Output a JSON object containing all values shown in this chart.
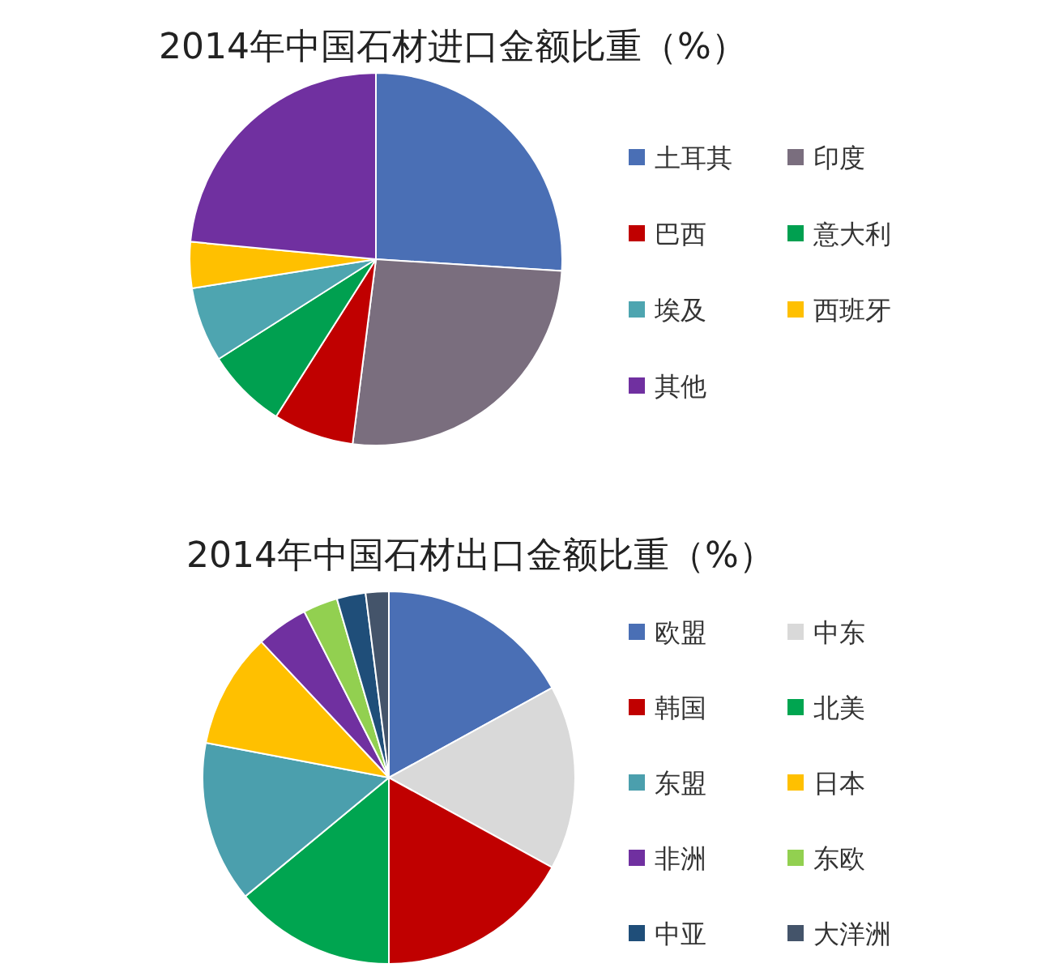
{
  "chart_data": [
    {
      "type": "pie",
      "title": "2014年中国石材进口金额比重（%）",
      "legend": "right",
      "categories": [
        "土耳其",
        "印度",
        "巴西",
        "意大利",
        "埃及",
        "西班牙",
        "其他"
      ],
      "values": [
        26,
        26,
        7,
        7,
        6.5,
        4,
        23.5
      ],
      "colors": [
        "#4a6fb5",
        "#7a6e7e",
        "#c00000",
        "#00a050",
        "#4ea5b0",
        "#ffc000",
        "#7030a0"
      ]
    },
    {
      "type": "pie",
      "title": "2014年中国石材出口金额比重（%）",
      "legend": "right",
      "categories": [
        "欧盟",
        "中东",
        "韩国",
        "北美",
        "东盟",
        "日本",
        "非洲",
        "东欧",
        "中亚",
        "大洋洲"
      ],
      "values": [
        17,
        16,
        17,
        14,
        14,
        10,
        4.5,
        3,
        2.5,
        2
      ],
      "colors": [
        "#4a6fb5",
        "#d9d9d9",
        "#c00000",
        "#00a550",
        "#4b9fad",
        "#ffc000",
        "#7030a0",
        "#92d050",
        "#1f4e79",
        "#44546a"
      ]
    }
  ]
}
